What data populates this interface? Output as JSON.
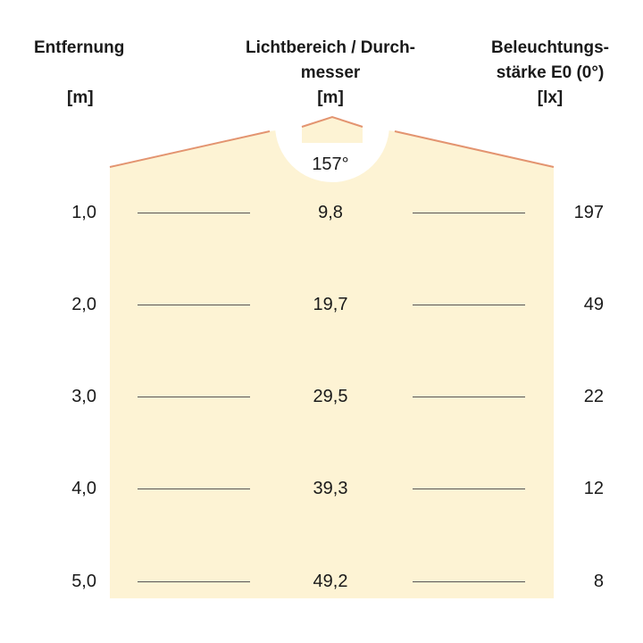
{
  "headers": {
    "distance": {
      "line1": "Entfernung",
      "unit": "[m]"
    },
    "diameter": {
      "line1": "Lichtbereich / Durch-",
      "line2": "messer",
      "unit": "[m]"
    },
    "illuminance": {
      "line1": "Beleuchtungs-",
      "line2": "stärke E0 (0°)",
      "unit": "[lx]"
    }
  },
  "beam_angle": "157°",
  "colors": {
    "fill": "#fdf3d4",
    "edge": "#e39470",
    "text": "#1a1a1a"
  },
  "rows": [
    {
      "distance": "1,0",
      "diameter": "9,8",
      "illuminance": "197"
    },
    {
      "distance": "2,0",
      "diameter": "19,7",
      "illuminance": "49"
    },
    {
      "distance": "3,0",
      "diameter": "29,5",
      "illuminance": "22"
    },
    {
      "distance": "4,0",
      "diameter": "39,3",
      "illuminance": "12"
    },
    {
      "distance": "5,0",
      "diameter": "49,2",
      "illuminance": "8"
    }
  ]
}
